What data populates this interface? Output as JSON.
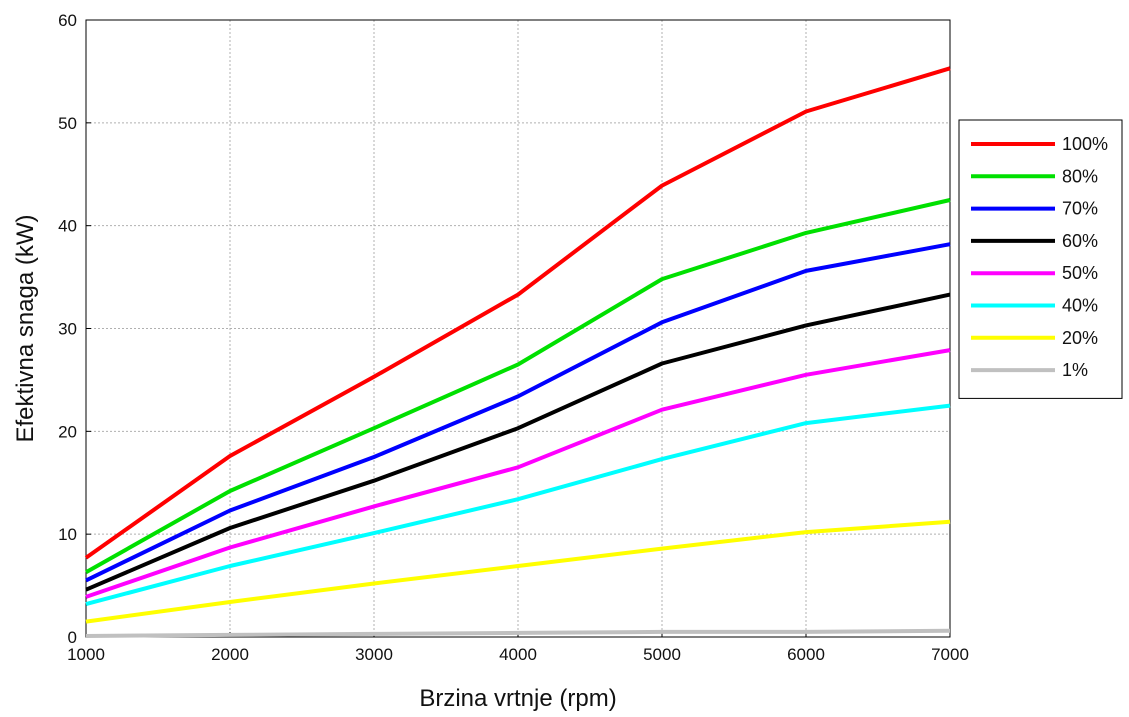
{
  "chart_data": {
    "type": "line",
    "xlabel": "Brzina vrtnje (rpm)",
    "ylabel": "Efektivna snaga (kW)",
    "xlim": [
      1000,
      7000
    ],
    "ylim": [
      0,
      60
    ],
    "x_ticks": [
      1000,
      2000,
      3000,
      4000,
      5000,
      6000,
      7000
    ],
    "y_ticks": [
      0,
      10,
      20,
      30,
      40,
      50,
      60
    ],
    "grid": true,
    "legend_position": "right",
    "x": [
      1000,
      2000,
      3000,
      4000,
      5000,
      6000,
      7000
    ],
    "series": [
      {
        "name": "100%",
        "color": "#ff0000",
        "values": [
          7.7,
          17.6,
          25.3,
          33.3,
          43.9,
          51.1,
          55.3
        ]
      },
      {
        "name": "80%",
        "color": "#00e000",
        "values": [
          6.3,
          14.2,
          20.3,
          26.5,
          34.8,
          39.3,
          42.5
        ]
      },
      {
        "name": "70%",
        "color": "#0000ff",
        "values": [
          5.5,
          12.3,
          17.5,
          23.4,
          30.6,
          35.6,
          38.2
        ]
      },
      {
        "name": "60%",
        "color": "#000000",
        "values": [
          4.6,
          10.6,
          15.2,
          20.3,
          26.6,
          30.3,
          33.3
        ]
      },
      {
        "name": "50%",
        "color": "#ff00ff",
        "values": [
          3.9,
          8.7,
          12.7,
          16.5,
          22.1,
          25.5,
          27.9
        ]
      },
      {
        "name": "40%",
        "color": "#00ffff",
        "values": [
          3.2,
          6.9,
          10.1,
          13.4,
          17.3,
          20.8,
          22.5
        ]
      },
      {
        "name": "20%",
        "color": "#ffff00",
        "values": [
          1.5,
          3.4,
          5.2,
          6.9,
          8.6,
          10.2,
          11.2
        ]
      },
      {
        "name": "1%",
        "color": "#c0c0c0",
        "values": [
          0.1,
          0.2,
          0.3,
          0.4,
          0.5,
          0.5,
          0.6
        ]
      }
    ]
  }
}
